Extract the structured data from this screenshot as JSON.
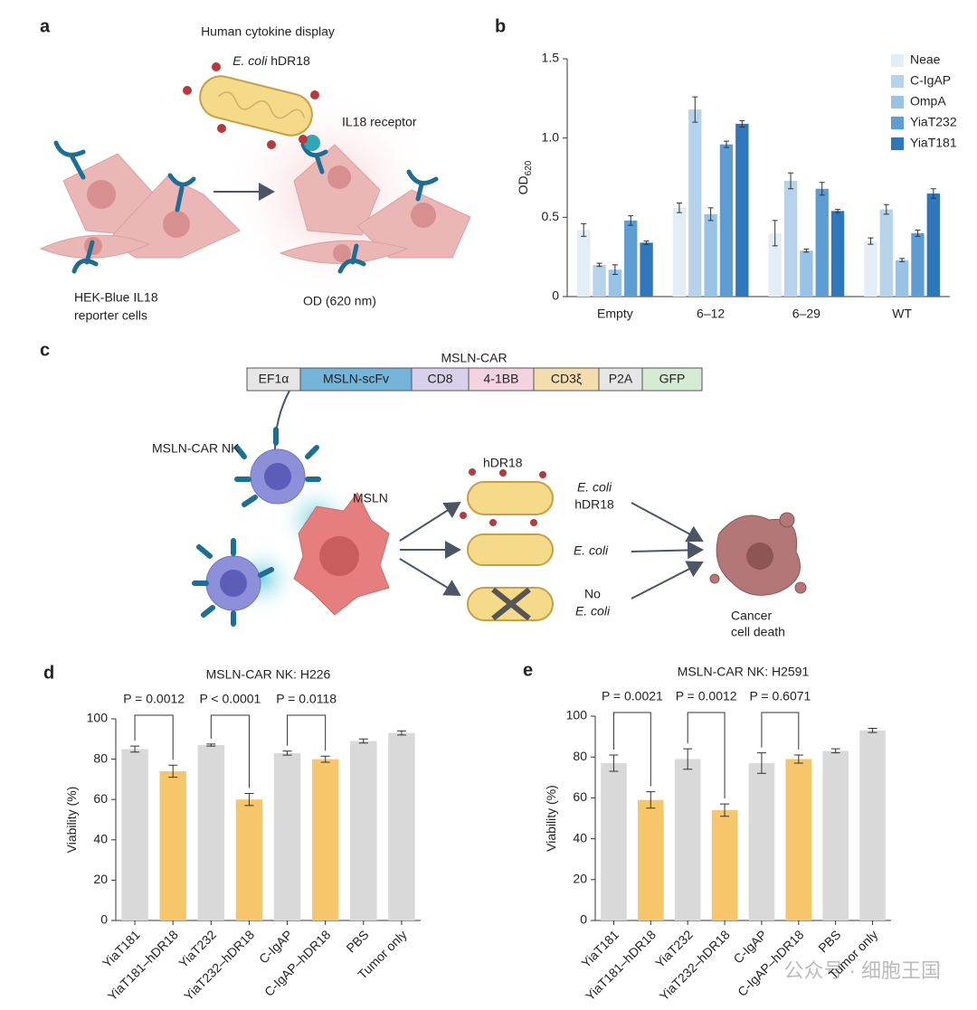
{
  "panel_a": {
    "letter": "a",
    "title": "Human cytokine display",
    "bacterium": {
      "species": "E. coli",
      "strain": "hDR18"
    },
    "receptor": "IL18 receptor",
    "cells": [
      "HEK-Blue IL18",
      "reporter cells"
    ],
    "readout": "OD (620 nm)"
  },
  "panel_c": {
    "letter": "c",
    "construct_title": "MSLN-CAR",
    "construct": [
      "EF1α",
      "MSLN-scFv",
      "CD8",
      "4-1BB",
      "CD3ξ",
      "P2A",
      "GFP"
    ],
    "nk_label": "MSLN-CAR NK",
    "target_label": "MSLN",
    "ligand_label": "hDR18",
    "conditions": [
      {
        "species": "E. coli",
        "strain": "hDR18"
      },
      {
        "species": "E. coli"
      },
      {
        "prefix": "No",
        "species": "E. coli"
      }
    ],
    "outcome": [
      "Cancer",
      "cell death"
    ]
  },
  "chart_data": [
    {
      "type": "bar",
      "panel": "b",
      "y_label": "OD",
      "y_label_sub": "620",
      "categories": [
        "Empty",
        "6–12",
        "6–29",
        "WT"
      ],
      "series": [
        {
          "name": "Neae",
          "color": "#e3edf6",
          "values": [
            0.42,
            0.56,
            0.4,
            0.35
          ],
          "errors": [
            0.04,
            0.03,
            0.08,
            0.02
          ]
        },
        {
          "name": "C-IgAP",
          "color": "#b7d3ec",
          "values": [
            0.2,
            1.18,
            0.73,
            0.55
          ],
          "errors": [
            0.01,
            0.08,
            0.05,
            0.03
          ]
        },
        {
          "name": "OmpA",
          "color": "#98c2e6",
          "values": [
            0.17,
            0.52,
            0.29,
            0.23
          ],
          "errors": [
            0.03,
            0.04,
            0.01,
            0.01
          ]
        },
        {
          "name": "YiaT232",
          "color": "#5d9dd3",
          "values": [
            0.48,
            0.96,
            0.68,
            0.4
          ],
          "errors": [
            0.03,
            0.02,
            0.04,
            0.02
          ]
        },
        {
          "name": "YiaT181",
          "color": "#2e77bd",
          "values": [
            0.34,
            1.09,
            0.54,
            0.65
          ],
          "errors": [
            0.01,
            0.02,
            0.01,
            0.03
          ]
        }
      ],
      "ylim": [
        0,
        1.5
      ],
      "yticks": [
        0,
        0.5,
        {
          "value": 1,
          "label": "1.0"
        },
        1.5
      ],
      "legend": "top-right"
    },
    {
      "type": "bar",
      "panel": "d",
      "title": "MSLN-CAR NK: H226",
      "y_label": "Viability (%)",
      "categories": [
        "YiaT181",
        "YiaT181–hDR18",
        "YiaT232",
        "YiaT232–hDR18",
        "C-IgAP",
        "C-IgAP–hDR18",
        "PBS",
        "Tumor only"
      ],
      "values": [
        85,
        74,
        87,
        60,
        83,
        80,
        89,
        93
      ],
      "errors": [
        1.5,
        3,
        0.5,
        3,
        1,
        1.5,
        1,
        1
      ],
      "colors": [
        "#d9d9d9",
        "#f7c66a",
        "#d9d9d9",
        "#f7c66a",
        "#d9d9d9",
        "#f7c66a",
        "#d9d9d9",
        "#d9d9d9"
      ],
      "ylim": [
        0,
        100
      ],
      "yticks": [
        0,
        20,
        40,
        60,
        80,
        100
      ],
      "annotations": [
        "P = 0.0012",
        "P < 0.0001",
        "P = 0.0118"
      ]
    },
    {
      "type": "bar",
      "panel": "e",
      "title": "MSLN-CAR NK: H2591",
      "y_label": "Viability (%)",
      "categories": [
        "YiaT181",
        "YiaT181–hDR18",
        "YiaT232",
        "YiaT232–hDR18",
        "C-IgAP",
        "C-IgAP–hDR18",
        "PBS",
        "Tumor only"
      ],
      "values": [
        77,
        59,
        79,
        54,
        77,
        79,
        83,
        93
      ],
      "errors": [
        4,
        4,
        5,
        3,
        5,
        2,
        1,
        1
      ],
      "colors": [
        "#d9d9d9",
        "#f7c66a",
        "#d9d9d9",
        "#f7c66a",
        "#d9d9d9",
        "#f7c66a",
        "#d9d9d9",
        "#d9d9d9"
      ],
      "ylim": [
        0,
        100
      ],
      "yticks": [
        0,
        20,
        40,
        60,
        80,
        100
      ],
      "annotations": [
        "P = 0.0021",
        "P = 0.0012",
        "P = 0.6071"
      ]
    }
  ],
  "watermark": "公众号 · 细胞王国"
}
